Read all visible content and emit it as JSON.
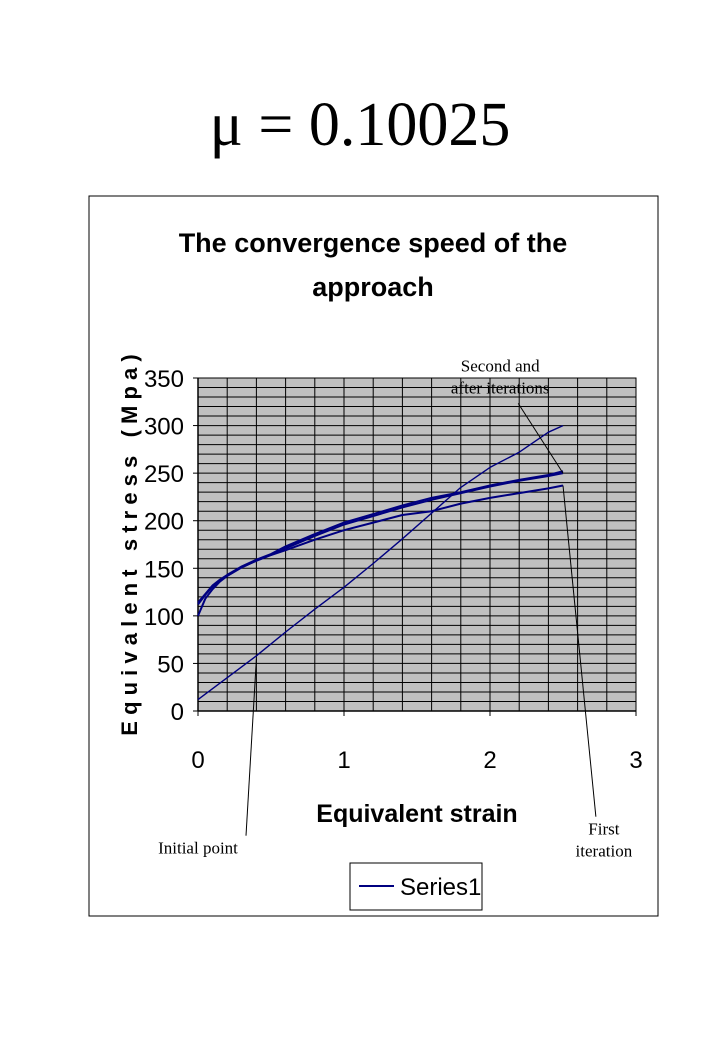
{
  "header": {
    "formula": "μ = 0.10025"
  },
  "chart_data": {
    "type": "line",
    "title": "The convergence speed of the approach",
    "title_lines": [
      "The convergence speed of the",
      "approach"
    ],
    "xlabel": "Equivalent strain",
    "ylabel": "E q u i v a l e n t   s t r e s s   ( M p a )",
    "xlim": [
      0,
      3
    ],
    "ylim": [
      0,
      350
    ],
    "x_ticks": [
      0,
      1,
      2,
      3
    ],
    "y_ticks": [
      0,
      50,
      100,
      150,
      200,
      250,
      300,
      350
    ],
    "x_tick_labels": [
      "0",
      "1",
      "2",
      "3"
    ],
    "y_tick_labels": [
      "0",
      "50",
      "100",
      "150",
      "200",
      "250",
      "300",
      "350"
    ],
    "grid": true,
    "plot_background": "#c0c0c0",
    "series_color": "#000080",
    "legend": {
      "entries": [
        "Series1"
      ],
      "position": "bottom"
    },
    "series": [
      {
        "name": "Series1",
        "x": [
          0,
          0.2,
          0.4,
          0.6,
          0.8,
          1.0,
          1.2,
          1.4,
          1.6,
          1.8,
          2.0,
          2.2,
          2.4,
          2.5
        ],
        "y": [
          12,
          35,
          58,
          83,
          107,
          130,
          155,
          181,
          208,
          235,
          256,
          272,
          293,
          300
        ]
      },
      {
        "name": "Series1",
        "x": [
          0,
          0.05,
          0.1,
          0.15,
          0.2,
          0.3,
          0.4,
          0.5,
          0.6,
          0.8,
          1.0,
          1.2,
          1.4,
          1.6,
          1.8,
          2.0,
          2.2,
          2.4,
          2.5
        ],
        "y": [
          100,
          118,
          128,
          136,
          142,
          151,
          158,
          164,
          169,
          180,
          190,
          198,
          206,
          210,
          218,
          224,
          229,
          234,
          237
        ]
      },
      {
        "name": "Series1",
        "x": [
          0,
          0.05,
          0.1,
          0.15,
          0.2,
          0.3,
          0.4,
          0.5,
          0.6,
          0.8,
          1.0,
          1.2,
          1.4,
          1.6,
          1.8,
          2.0,
          2.2,
          2.4,
          2.5
        ],
        "y": [
          112,
          122,
          131,
          137,
          142,
          151,
          158,
          164,
          171,
          184,
          196,
          205,
          214,
          222,
          229,
          236,
          242,
          247,
          250
        ]
      },
      {
        "name": "Series1",
        "x": [
          0,
          0.05,
          0.1,
          0.15,
          0.2,
          0.3,
          0.4,
          0.5,
          0.6,
          0.8,
          1.0,
          1.2,
          1.4,
          1.6,
          1.8,
          2.0,
          2.2,
          2.4,
          2.5
        ],
        "y": [
          114,
          123,
          132,
          138,
          143,
          152,
          159,
          165,
          173,
          186,
          198,
          207,
          216,
          224,
          230,
          237,
          243,
          248,
          252
        ]
      }
    ],
    "annotations": [
      {
        "lines": [
          "Second and",
          "after iterations"
        ],
        "label_at": [
          2.07,
          357
        ],
        "points_to": [
          2.5,
          250
        ]
      },
      {
        "lines": [
          "First",
          "iteration"
        ],
        "label_at": [
          2.78,
          -130
        ],
        "points_to": [
          2.5,
          237
        ]
      },
      {
        "lines": [
          "Initial point"
        ],
        "label_at": [
          0.0,
          -150
        ],
        "points_to": [
          0.4,
          55
        ]
      }
    ]
  }
}
